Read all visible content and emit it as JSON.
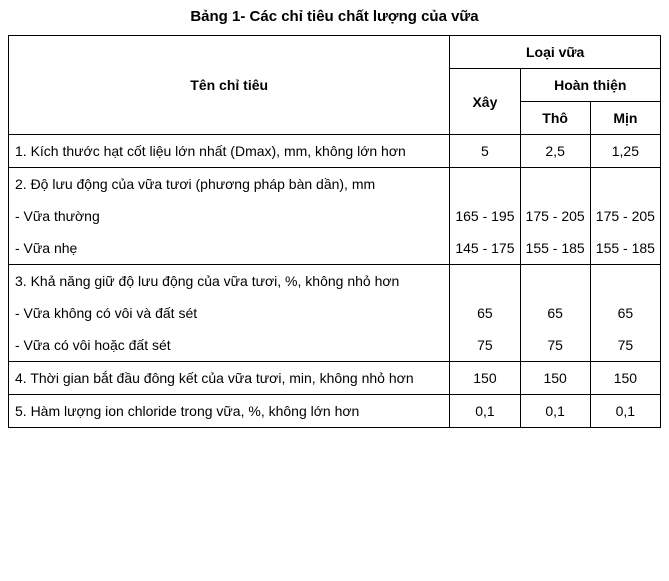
{
  "title": "Bảng 1- Các chỉ tiêu chất lượng của vữa",
  "headers": {
    "criteria": "Tên chỉ tiêu",
    "group": "Loại vữa",
    "xay": "Xây",
    "hoanthien": "Hoàn thiện",
    "tho": "Thô",
    "min": "Mịn"
  },
  "rows": {
    "r1": {
      "label": "1. Kích thước hạt cốt liệu lớn nhất (Dmax), mm, không lớn hơn",
      "xay": "5",
      "tho": "2,5",
      "min": "1,25"
    },
    "r2h": {
      "label": "2. Độ lưu động của vữa tươi (phương pháp bàn dần), mm"
    },
    "r2a": {
      "label": "- Vữa thường",
      "xay": "165 - 195",
      "tho": "175 - 205",
      "min": "175 - 205"
    },
    "r2b": {
      "label": "- Vữa nhẹ",
      "xay": "145 - 175",
      "tho": "155 - 185",
      "min": "155 - 185"
    },
    "r3h": {
      "label": "3. Khả năng giữ độ lưu động của vữa tươi, %, không nhỏ hơn"
    },
    "r3a": {
      "label": "- Vữa không có vôi và đất sét",
      "xay": "65",
      "tho": "65",
      "min": "65"
    },
    "r3b": {
      "label": "- Vữa có vôi hoặc đất sét",
      "xay": "75",
      "tho": "75",
      "min": "75"
    },
    "r4": {
      "label": "4. Thời gian bắt đầu đông kết của vữa tươi, min, không nhỏ hơn",
      "xay": "150",
      "tho": "150",
      "min": "150"
    },
    "r5": {
      "label": "5. Hàm lượng ion chloride trong vữa, %, không lớn hơn",
      "xay": "0,1",
      "tho": "0,1",
      "min": "0,1"
    }
  }
}
